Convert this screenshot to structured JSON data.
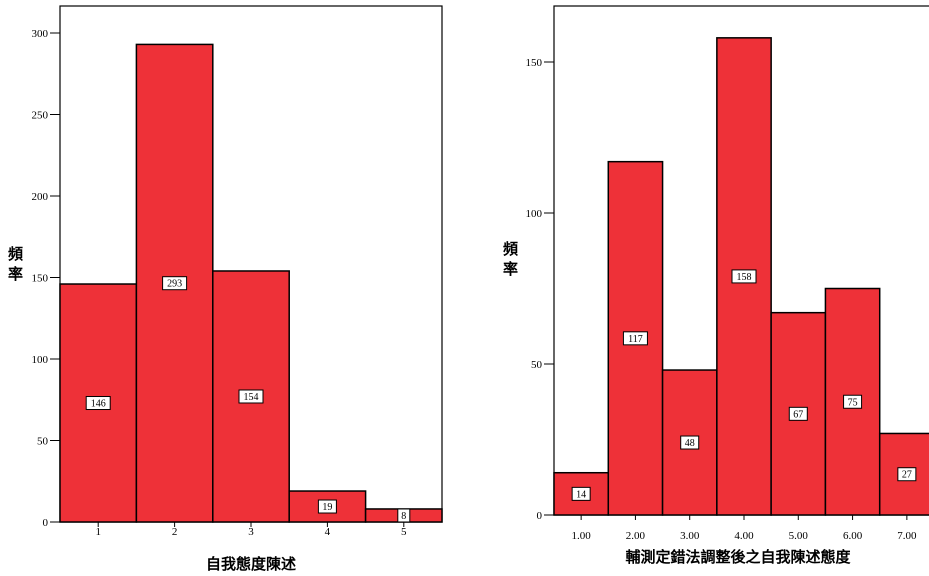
{
  "chart_data": [
    {
      "type": "bar",
      "xlabel": "自我態度陳述",
      "ylabel": "頻率",
      "categories": [
        "1",
        "2",
        "3",
        "4",
        "5"
      ],
      "values": [
        146,
        293,
        154,
        19,
        8
      ],
      "data_labels": [
        "146",
        "293",
        "154",
        "19",
        "8"
      ],
      "ylim": [
        0,
        300
      ],
      "yticks": [
        "0",
        "50",
        "100",
        "150",
        "200",
        "250",
        "300"
      ],
      "bar_color": "#ee3138",
      "grid": false
    },
    {
      "type": "bar",
      "xlabel": "輔測定錯法調整後之自我陳述態度",
      "ylabel": "頻率",
      "categories": [
        "1.00",
        "2.00",
        "3.00",
        "4.00",
        "5.00",
        "6.00",
        "7.00"
      ],
      "values": [
        14,
        117,
        48,
        158,
        67,
        75,
        27
      ],
      "data_labels": [
        "14",
        "117",
        "48",
        "158",
        "67",
        "75",
        "27"
      ],
      "ylim": [
        0,
        150
      ],
      "yticks": [
        "0",
        "50",
        "100",
        "150"
      ],
      "bar_color": "#ee3138",
      "grid": false
    }
  ]
}
